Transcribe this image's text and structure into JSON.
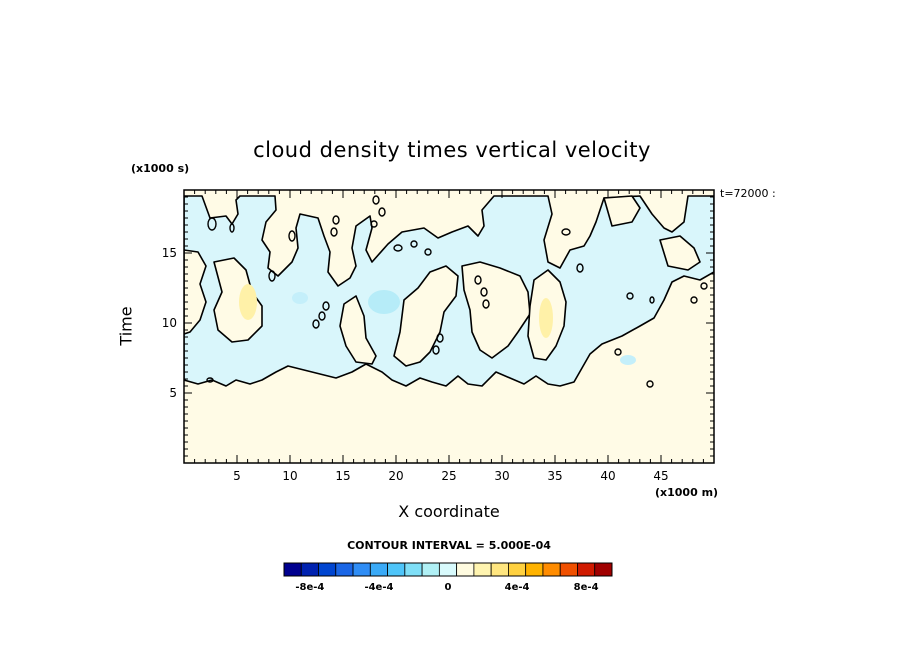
{
  "chart_data": {
    "type": "heatmap",
    "title": "cloud density times vertical velocity",
    "xlabel": "X coordinate",
    "ylabel": "Time",
    "x_scale_label": "(x1000 m)",
    "y_scale_label": "(x1000 s)",
    "time_label": "t=72000 :",
    "xlim": [
      0,
      50
    ],
    "ylim": [
      0,
      19.5
    ],
    "x_ticks": [
      "5",
      "10",
      "15",
      "20",
      "25",
      "30",
      "35",
      "40",
      "45"
    ],
    "y_ticks": [
      "5",
      "10",
      "15"
    ],
    "contour_interval_label": "CONTOUR INTERVAL = 5.000E-04",
    "colorbar": {
      "labels": [
        "-8e-4",
        "-4e-4",
        "0",
        "4e-4",
        "8e-4"
      ],
      "colors": [
        "#00008f",
        "#0022b0",
        "#0045d0",
        "#1a66e6",
        "#2f8df5",
        "#3aaaf7",
        "#4fc5f9",
        "#7fdff7",
        "#b0f0f5",
        "#d8fafc",
        "#fffbe0",
        "#fff4b0",
        "#ffe680",
        "#ffd140",
        "#ffb300",
        "#ff8c00",
        "#f05000",
        "#d01a00",
        "#a00000"
      ]
    },
    "background_value": "0",
    "regions": [
      {
        "level": "-4e-4 to 0",
        "x_range": [
          0,
          50
        ],
        "y_range": [
          5.5,
          19.5
        ],
        "color": "#d8f6fb"
      },
      {
        "level": "0 to 4e-4",
        "x_range": [
          0,
          50
        ],
        "y_range": [
          0,
          5.5
        ],
        "color": "#fffbe6"
      }
    ],
    "time_ticks": "5, 10, 15 (x1000 s)"
  }
}
